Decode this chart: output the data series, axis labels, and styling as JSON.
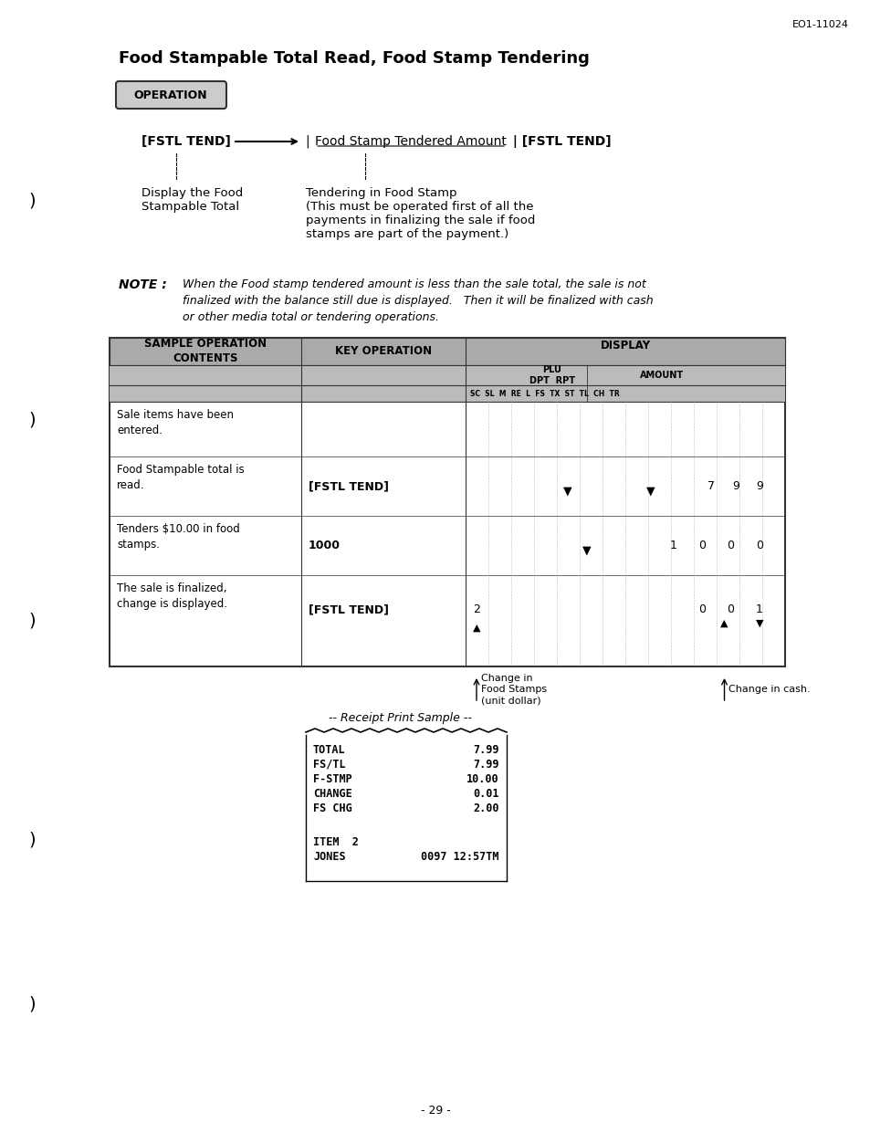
{
  "page_ref": "EO1-11024",
  "title": "Food Stampable Total Read, Food Stamp Tendering",
  "operation_label": "OPERATION",
  "flow_left": "[FSTL TEND]",
  "flow_mid": "| Food Stamp Tendered Amount | [FSTL TEND]",
  "flow_left_desc1": "Display the Food",
  "flow_left_desc2": "Stampable Total",
  "flow_right_desc1": "Tendering in Food Stamp",
  "flow_right_desc2": "(This must be operated first of all the",
  "flow_right_desc3": "payments in finalizing the sale if food",
  "flow_right_desc4": "stamps are part of the payment.)",
  "note_label": "NOTE :",
  "note_text": "When the Food stamp tendered amount is less than the sale total, the sale is not\nfinalized with the balance still due is displayed.   Then it will be finalized with cash\nor other media total or tendering operations.",
  "table_header1": "SAMPLE OPERATION\nCONTENTS",
  "table_header2": "KEY OPERATION",
  "table_header3": "DISPLAY",
  "table_sub_header3a": "PLU\nDPT  RPT",
  "table_sub_header3b": "AMOUNT",
  "table_col_labels": "SC  SL  M  RE  L  FS  TX  ST  TL  CH  TR",
  "row1_col1": "Sale items have been\nentered.",
  "row1_col2": "",
  "row2_col1": "Food Stampable total is\nread.",
  "row2_col2": "[FSTL TEND]",
  "row2_display": "7 9 9",
  "row3_col1": "Tenders $10.00 in food\nstamps.",
  "row3_col2": "1000",
  "row3_display": "1 0 0 0",
  "row4_col1": "The sale is finalized,\nchange is displayed.",
  "row4_col2": "[FSTL TEND]",
  "row4_display_left": "2",
  "row4_display_right": "0 0 1",
  "receipt_label": "-- Receipt Print Sample --",
  "receipt_lines": [
    [
      "TOTAL",
      "7.99"
    ],
    [
      "FS/TL",
      "7.99"
    ],
    [
      "F-STMP",
      "10.00"
    ],
    [
      "CHANGE",
      "0.01"
    ],
    [
      "FS CHG",
      "2.00"
    ],
    [
      "",
      ""
    ],
    [
      "ITEM  2",
      ""
    ],
    [
      "JONES",
      "0097 12:57TM"
    ]
  ],
  "change_fs_label": "Change in\nFood Stamps\n(unit dollar)",
  "change_cash_label": "Change in cash.",
  "page_number": "- 29 -",
  "bg_color": "#ffffff",
  "table_header_bg": "#b0b0b0",
  "table_row_bg": "#ffffff"
}
